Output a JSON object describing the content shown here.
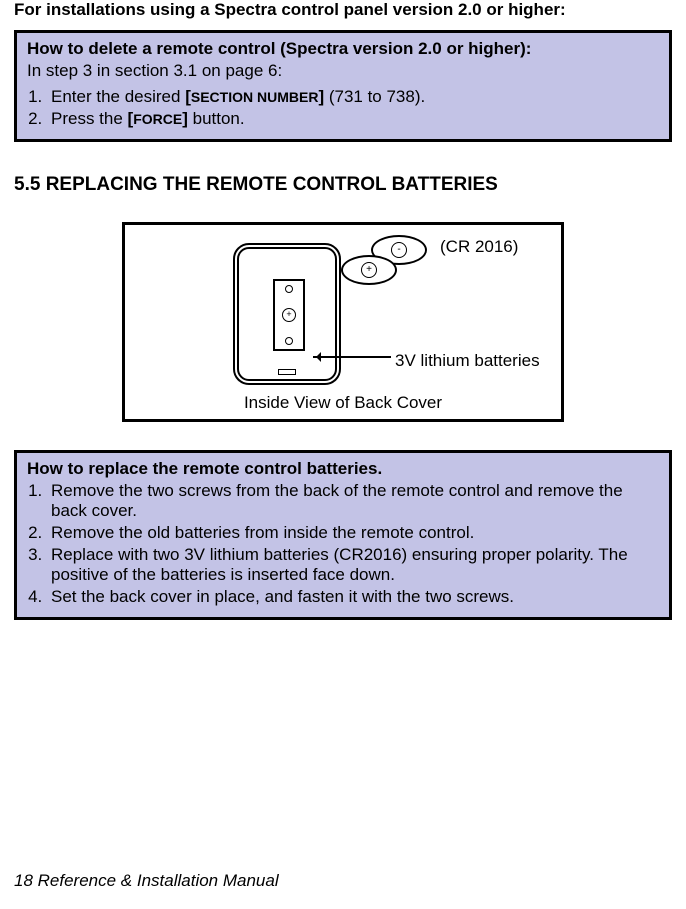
{
  "intro": "For installations using a Spectra control panel version 2.0 or higher:",
  "box1": {
    "title": "How to delete a remote control (Spectra version 2.0 or higher):",
    "subtitle": "In step 3 in section 3.1 on page 6:",
    "step1_a": "Enter the desired ",
    "step1_b": "[",
    "step1_c": "SECTION NUMBER",
    "step1_d": "]",
    "step1_e": " (731 to 738).",
    "step2_a": "Press the ",
    "step2_b": "[",
    "step2_c": "FORCE",
    "step2_d": "]",
    "step2_e": " button."
  },
  "heading": "5.5 REPLACING THE REMOTE CONTROL BATTERIES",
  "diagram": {
    "cr_label": "(CR 2016)",
    "battery_label": "3V lithium batteries",
    "caption": "Inside View of Back Cover",
    "plus": "+",
    "minus": "-"
  },
  "box2": {
    "title": "How to replace the remote control batteries.",
    "step1": "Remove the two screws from the back of the remote control and remove the back cover.",
    "step2": "Remove the old batteries from inside the remote control.",
    "step3": "Replace with two 3V lithium batteries (CR2016) ensuring proper polarity. The positive of the batteries is inserted face down.",
    "step4": "Set the back cover in place, and fasten it with the two screws."
  },
  "footer": "18  Reference & Installation Manual"
}
